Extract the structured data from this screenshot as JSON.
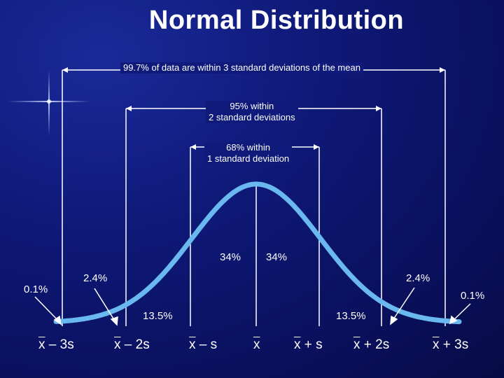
{
  "title": "Normal Distribution",
  "brackets": {
    "b3": "99.7% of data are within 3 standard deviations of the mean",
    "b2_line1": "95% within",
    "b2_line2": "2 standard deviations",
    "b1_line1": "68% within",
    "b1_line2": "1 standard deviation"
  },
  "percentages": {
    "left_center": "34%",
    "right_center": "34%",
    "left_mid": "13.5%",
    "right_mid": "13.5%",
    "left_tail2": "2.4%",
    "right_tail2": "2.4%",
    "left_tail3": "0.1%",
    "right_tail3": "0.1%"
  },
  "axis": {
    "m3": {
      "x": "x",
      "rest": " – 3s"
    },
    "m2": {
      "x": "x",
      "rest": " – 2s"
    },
    "m1": {
      "x": "x",
      "rest": " – s"
    },
    "mean": {
      "x": "x",
      "rest": ""
    },
    "p1": {
      "x": "x",
      "rest": " + s"
    },
    "p2": {
      "x": "x",
      "rest": " + 2s"
    },
    "p3": {
      "x": "x",
      "rest": " + 3s"
    }
  },
  "colors": {
    "curve": "#6ab8f0",
    "background": "#0f1a7a",
    "text": "#ffffff"
  }
}
